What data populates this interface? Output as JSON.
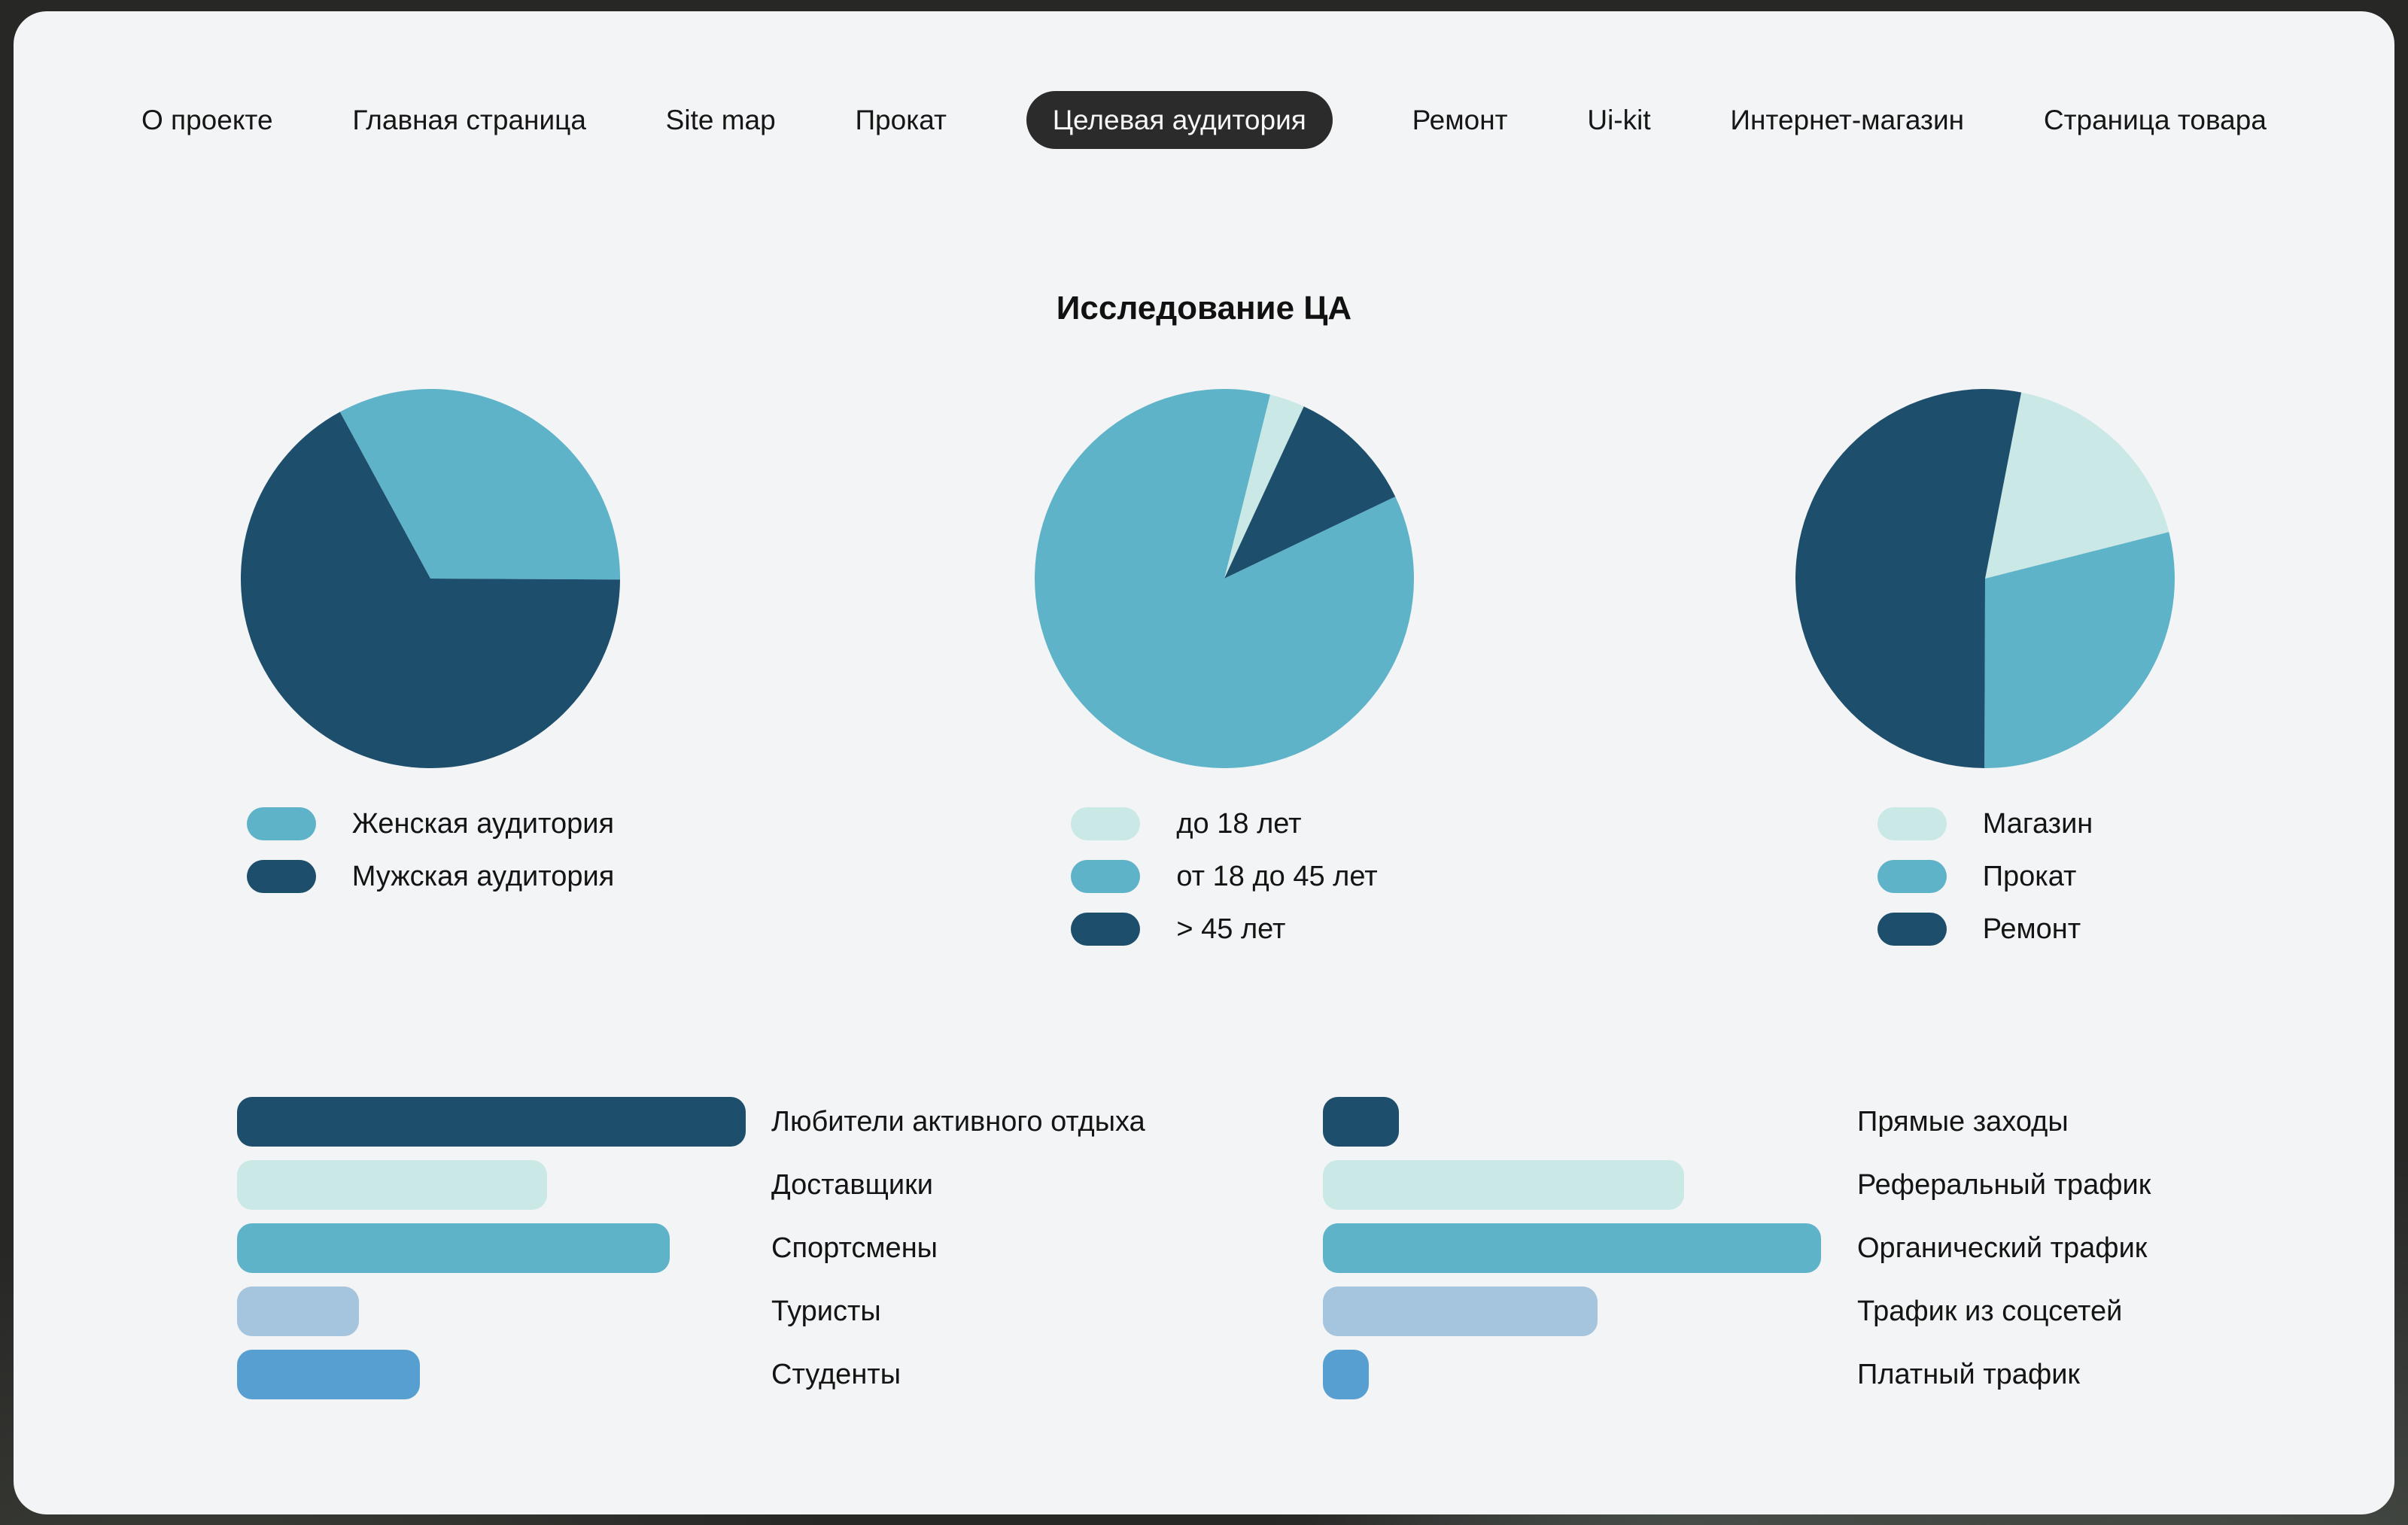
{
  "page": {
    "title_label": "Исследование ЦА"
  },
  "nav": {
    "items": [
      {
        "label": "О проекте",
        "active": false
      },
      {
        "label": "Главная страница",
        "active": false
      },
      {
        "label": "Site map",
        "active": false
      },
      {
        "label": "Прокат",
        "active": false
      },
      {
        "label": "Целевая аудитория",
        "active": true
      },
      {
        "label": "Ремонт",
        "active": false
      },
      {
        "label": "Ui-kit",
        "active": false
      },
      {
        "label": "Интернет-магазин",
        "active": false
      },
      {
        "label": "Страница товара",
        "active": false
      }
    ]
  },
  "palette": {
    "navy": "#1d4e6b",
    "teal": "#5fb3c9",
    "mint": "#cae8e5",
    "periwinkle": "#a5c4dd",
    "blue": "#579fd0",
    "card_bg": "#f3f4f5",
    "page_bg": "#272726",
    "nav_active_bg": "#2b2b2b",
    "nav_active_text": "#f7f7f7",
    "text": "#141414"
  },
  "chart_data": [
    {
      "type": "pie",
      "id": "gender-pie",
      "rotation_deg": -28.5,
      "draw_order": [
        0,
        1
      ],
      "slices": [
        {
          "label": "Женская аудитория",
          "value_pct": 33,
          "color": "#5fb3c9"
        },
        {
          "label": "Мужская аудитория",
          "value_pct": 67,
          "color": "#1d4e6b"
        }
      ]
    },
    {
      "type": "pie",
      "id": "age-pie",
      "rotation_deg": 14,
      "draw_order": [
        0,
        2,
        1
      ],
      "slices": [
        {
          "label": "до 18 лет",
          "value_pct": 3,
          "color": "#cae8e5"
        },
        {
          "label": "от 18 до 45 лет",
          "value_pct": 86,
          "color": "#5fb3c9"
        },
        {
          "label": "> 45 лет",
          "value_pct": 11,
          "color": "#1d4e6b"
        }
      ]
    },
    {
      "type": "pie",
      "id": "service-pie",
      "rotation_deg": 11,
      "draw_order": [
        0,
        1,
        2
      ],
      "slices": [
        {
          "label": "Магазин",
          "value_pct": 18,
          "color": "#cae8e5"
        },
        {
          "label": "Прокат",
          "value_pct": 29,
          "color": "#5fb3c9"
        },
        {
          "label": "Ремонт",
          "value_pct": 53,
          "color": "#1d4e6b"
        }
      ]
    },
    {
      "type": "bar",
      "id": "interests-bars",
      "bars": [
        {
          "label": "Любители активного отдыха",
          "value_pct": 100,
          "color": "#1d4e6b"
        },
        {
          "label": "Доставщики",
          "value_pct": 61,
          "color": "#cae8e5"
        },
        {
          "label": "Спортсмены",
          "value_pct": 85,
          "color": "#5fb3c9"
        },
        {
          "label": "Туристы",
          "value_pct": 24,
          "color": "#a5c4dd"
        },
        {
          "label": "Студенты",
          "value_pct": 36,
          "color": "#579fd0"
        }
      ]
    },
    {
      "type": "bar",
      "id": "traffic-bars",
      "bars": [
        {
          "label": "Прямые заходы",
          "value_pct": 15,
          "color": "#1d4e6b"
        },
        {
          "label": "Реферальный трафик",
          "value_pct": 71,
          "color": "#cae8e5"
        },
        {
          "label": "Органический трафик",
          "value_pct": 98,
          "color": "#5fb3c9"
        },
        {
          "label": "Трафик из соцсетей",
          "value_pct": 54,
          "color": "#a5c4dd"
        },
        {
          "label": "Платный трафик",
          "value_pct": 9,
          "color": "#579fd0"
        }
      ]
    }
  ]
}
